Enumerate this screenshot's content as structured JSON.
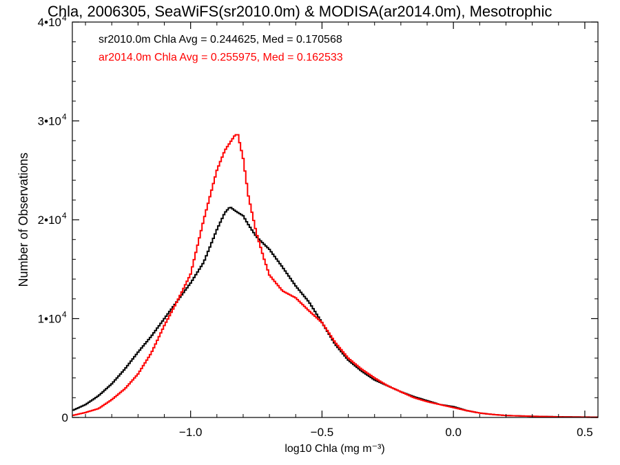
{
  "chart_data": {
    "type": "line",
    "title": "Chla, 2006305, SeaWiFS(sr2010.0m) & MODISA(ar2014.0m), Mesotrophic",
    "xlabel": "log10 Chla (mg m⁻³)",
    "ylabel": "Number of Observations",
    "xlim": [
      -1.45,
      0.55
    ],
    "ylim": [
      0,
      40000
    ],
    "grid": false,
    "x_ticks": [
      {
        "value": -1.0,
        "label": "−1.0"
      },
      {
        "value": -0.5,
        "label": "−0.5"
      },
      {
        "value": 0.0,
        "label": "0.0"
      },
      {
        "value": 0.5,
        "label": "0.5"
      }
    ],
    "y_ticks": [
      {
        "value": 0,
        "label": "0",
        "exp": ""
      },
      {
        "value": 10000,
        "label": "1•10",
        "exp": "4"
      },
      {
        "value": 20000,
        "label": "2•10",
        "exp": "4"
      },
      {
        "value": 30000,
        "label": "3•10",
        "exp": "4"
      },
      {
        "value": 40000,
        "label": "4•10",
        "exp": "4"
      }
    ],
    "annotations": [
      {
        "text": "sr2010.0m Chla Avg = 0.244625, Med = 0.170568",
        "color": "#000000"
      },
      {
        "text": "ar2014.0m Chla Avg = 0.255975, Med = 0.162533",
        "color": "#ff0000"
      }
    ],
    "series": [
      {
        "color": "#000000",
        "x": [
          -1.45,
          -1.4,
          -1.35,
          -1.3,
          -1.25,
          -1.2,
          -1.15,
          -1.1,
          -1.05,
          -1.0,
          -0.95,
          -0.9,
          -0.87,
          -0.85,
          -0.83,
          -0.8,
          -0.78,
          -0.75,
          -0.7,
          -0.65,
          -0.6,
          -0.55,
          -0.5,
          -0.45,
          -0.4,
          -0.35,
          -0.3,
          -0.25,
          -0.2,
          -0.15,
          -0.1,
          -0.05,
          0.0,
          0.05,
          0.1,
          0.15,
          0.2,
          0.3,
          0.4,
          0.55
        ],
        "y": [
          700,
          1300,
          2200,
          3400,
          4900,
          6600,
          8200,
          10000,
          11800,
          13600,
          15700,
          19000,
          20700,
          21300,
          20900,
          20400,
          19500,
          18300,
          17000,
          15200,
          13300,
          11700,
          9600,
          7400,
          5800,
          4700,
          3800,
          3200,
          2600,
          2100,
          1700,
          1300,
          1100,
          700,
          450,
          300,
          200,
          120,
          70,
          30
        ]
      },
      {
        "color": "#ff0000",
        "x": [
          -1.45,
          -1.4,
          -1.35,
          -1.3,
          -1.25,
          -1.2,
          -1.15,
          -1.1,
          -1.05,
          -1.0,
          -0.95,
          -0.9,
          -0.87,
          -0.85,
          -0.83,
          -0.82,
          -0.8,
          -0.78,
          -0.75,
          -0.72,
          -0.7,
          -0.65,
          -0.6,
          -0.55,
          -0.5,
          -0.45,
          -0.4,
          -0.35,
          -0.3,
          -0.25,
          -0.2,
          -0.15,
          -0.1,
          -0.05,
          0.0,
          0.05,
          0.1,
          0.15,
          0.2,
          0.3,
          0.4,
          0.55
        ],
        "y": [
          200,
          500,
          900,
          1800,
          2900,
          4400,
          6500,
          9300,
          11800,
          14500,
          20000,
          25000,
          27000,
          27800,
          28600,
          28600,
          26200,
          22400,
          18700,
          16000,
          14400,
          12800,
          12100,
          10800,
          9600,
          7600,
          6000,
          4900,
          4000,
          3200,
          2600,
          2000,
          1600,
          1300,
          1000,
          700,
          450,
          300,
          200,
          120,
          60,
          20
        ]
      }
    ]
  }
}
